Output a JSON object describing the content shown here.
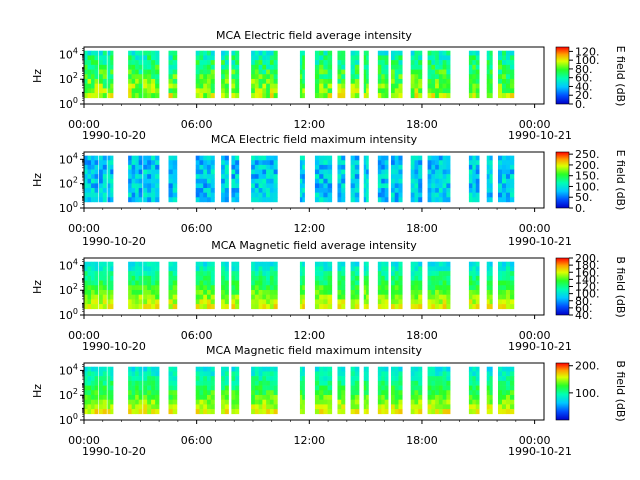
{
  "chart_data": [
    {
      "type": "heatmap",
      "title": "MCA  Electric field average intensity",
      "ylabel": "Hz",
      "colorbar_label": "E field (dB)",
      "colorbar_ticks": [
        "0.",
        "20.",
        "40.",
        "60.",
        "80.",
        "100.",
        "120."
      ],
      "colorbar_range": [
        0,
        130
      ],
      "yticks": [
        "10^0",
        "10^2",
        "10^4"
      ],
      "xticks": [
        "00:00",
        "06:00",
        "12:00",
        "18:00",
        "00:00"
      ],
      "xdates": [
        "1990-10-20",
        "1990-10-21"
      ],
      "level": 0.45
    },
    {
      "type": "heatmap",
      "title": "MCA  Electric field maximum intensity",
      "ylabel": "Hz",
      "colorbar_label": "E field (dB)",
      "colorbar_ticks": [
        "0.",
        "50.",
        "100.",
        "150.",
        "200.",
        "250."
      ],
      "colorbar_range": [
        0,
        260
      ],
      "yticks": [
        "10^0",
        "10^2",
        "10^4"
      ],
      "xticks": [
        "00:00",
        "06:00",
        "12:00",
        "18:00",
        "00:00"
      ],
      "xdates": [
        "1990-10-20",
        "1990-10-21"
      ],
      "level": 0.32
    },
    {
      "type": "heatmap",
      "title": "MCA  Magnetic field average intensity",
      "ylabel": "Hz",
      "colorbar_label": "B field (dB)",
      "colorbar_ticks": [
        "40.",
        "60.",
        "80.",
        "100.",
        "120.",
        "140.",
        "160.",
        "180.",
        "200."
      ],
      "colorbar_range": [
        40,
        200
      ],
      "yticks": [
        "10^0",
        "10^2",
        "10^4"
      ],
      "xticks": [
        "00:00",
        "06:00",
        "12:00",
        "18:00",
        "00:00"
      ],
      "xdates": [
        "1990-10-20",
        "1990-10-21"
      ],
      "level": 0.5
    },
    {
      "type": "heatmap",
      "title": "MCA  Magnetic field maximum intensity",
      "ylabel": "Hz",
      "colorbar_label": "B field (dB)",
      "colorbar_ticks": [
        "100.",
        "200."
      ],
      "colorbar_range": [
        0,
        210
      ],
      "yticks": [
        "10^0",
        "10^2",
        "10^4"
      ],
      "xticks": [
        "00:00",
        "06:00",
        "12:00",
        "18:00",
        "00:00"
      ],
      "xdates": [
        "1990-10-20",
        "1990-10-21"
      ],
      "level": 0.5
    }
  ],
  "data_segments_hours": [
    [
      0.0,
      0.75
    ],
    [
      0.8,
      1.2
    ],
    [
      1.25,
      1.55
    ],
    [
      2.35,
      3.1
    ],
    [
      3.15,
      4.0
    ],
    [
      4.5,
      4.95
    ],
    [
      5.95,
      6.95
    ],
    [
      7.3,
      7.7
    ],
    [
      7.85,
      8.25
    ],
    [
      8.9,
      10.3
    ],
    [
      11.5,
      11.75
    ],
    [
      12.3,
      13.2
    ],
    [
      13.5,
      13.9
    ],
    [
      14.2,
      14.65
    ],
    [
      14.9,
      15.15
    ],
    [
      15.65,
      16.2
    ],
    [
      16.35,
      16.95
    ],
    [
      17.4,
      18.0
    ],
    [
      18.3,
      19.5
    ],
    [
      20.5,
      21.05
    ],
    [
      21.45,
      21.75
    ],
    [
      22.05,
      22.9
    ]
  ]
}
